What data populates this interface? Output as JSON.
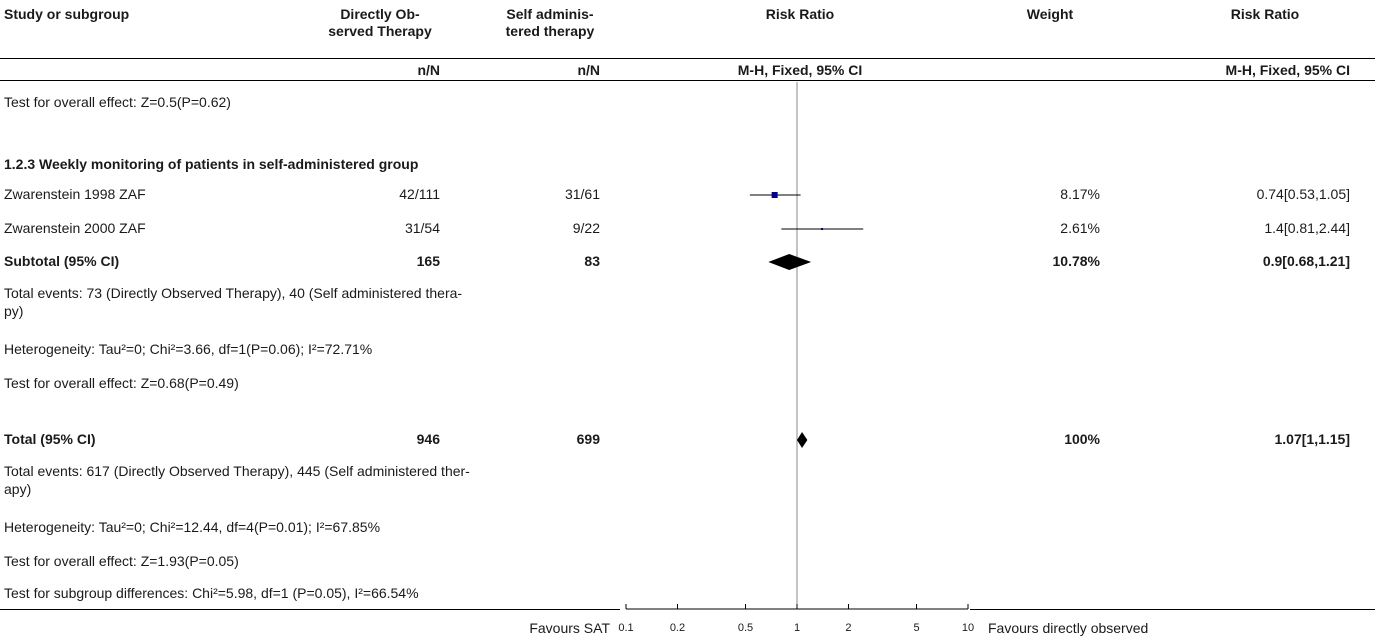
{
  "header": {
    "study": "Study or subgroup",
    "exp_line1": "Directly Ob-",
    "exp_line2": "served Therapy",
    "ctl_line1": "Self adminis-",
    "ctl_line2": "tered therapy",
    "rr_plot": "Risk Ratio",
    "weight": "Weight",
    "rr_text": "Risk Ratio",
    "exp_sub": "n/N",
    "ctl_sub": "n/N",
    "rr_plot_sub": "M-H, Fixed, 95% CI",
    "rr_text_sub": "M-H, Fixed, 95% CI"
  },
  "rows": {
    "prev_overall": "Test for overall effect: Z=0.5(P=0.62)",
    "subgroup_title": "1.2.3 Weekly monitoring of patients in self-administered group",
    "subtotal_label": "Subtotal (95% CI)",
    "subtotal_exp": "165",
    "subtotal_ctl": "83",
    "subtotal_weight": "10.78%",
    "subtotal_rr": "0.9[0.68,1.21]",
    "sub_events": "Total events: 73 (Directly Observed Therapy), 40 (Self administered thera-py)",
    "sub_events_l1": "Total events: 73 (Directly Observed Therapy), 40 (Self administered thera-",
    "sub_events_l2": "py)",
    "sub_het": "Heterogeneity: Tau²=0; Chi²=3.66, df=1(P=0.06); I²=72.71%",
    "sub_overall": "Test for overall effect: Z=0.68(P=0.49)",
    "total_label": "Total (95% CI)",
    "total_exp": "946",
    "total_ctl": "699",
    "total_weight": "100%",
    "total_rr": "1.07[1,1.15]",
    "tot_events_l1": "Total events: 617 (Directly Observed Therapy), 445 (Self administered ther-",
    "tot_events_l2": "apy)",
    "tot_het": "Heterogeneity: Tau²=0; Chi²=12.44, df=4(P=0.01); I²=67.85%",
    "tot_overall": "Test for overall effect: Z=1.93(P=0.05)",
    "subgroup_diff": "Test for subgroup differences: Chi²=5.98, df=1 (P=0.05), I²=66.54%"
  },
  "footer": {
    "favours_left": "Favours SAT",
    "favours_right": "Favours directly observed"
  },
  "colors": {
    "study_marker": "#00008b",
    "line": "#000000",
    "text": "#1a1a1a"
  },
  "chart_data": {
    "type": "forest",
    "scale": "log",
    "xlim": [
      0.1,
      10
    ],
    "ticks": [
      "0.1",
      "0.2",
      "0.5",
      "1",
      "2",
      "5",
      "10"
    ],
    "tick_values": [
      0.1,
      0.2,
      0.5,
      1,
      2,
      5,
      10
    ],
    "studies": [
      {
        "name": "Zwarenstein 1998 ZAF",
        "exp": "42/111",
        "ctl": "31/61",
        "weight": "8.17%",
        "rr_text": "0.74[0.53,1.05]",
        "rr": 0.74,
        "lo": 0.53,
        "hi": 1.05
      },
      {
        "name": "Zwarenstein 2000 ZAF",
        "exp": "31/54",
        "ctl": "9/22",
        "weight": "2.61%",
        "rr_text": "1.4[0.81,2.44]",
        "rr": 1.4,
        "lo": 0.81,
        "hi": 2.44
      }
    ],
    "subtotal": {
      "rr": 0.9,
      "lo": 0.68,
      "hi": 1.21
    },
    "total": {
      "rr": 1.07,
      "lo": 1.0,
      "hi": 1.15
    }
  }
}
